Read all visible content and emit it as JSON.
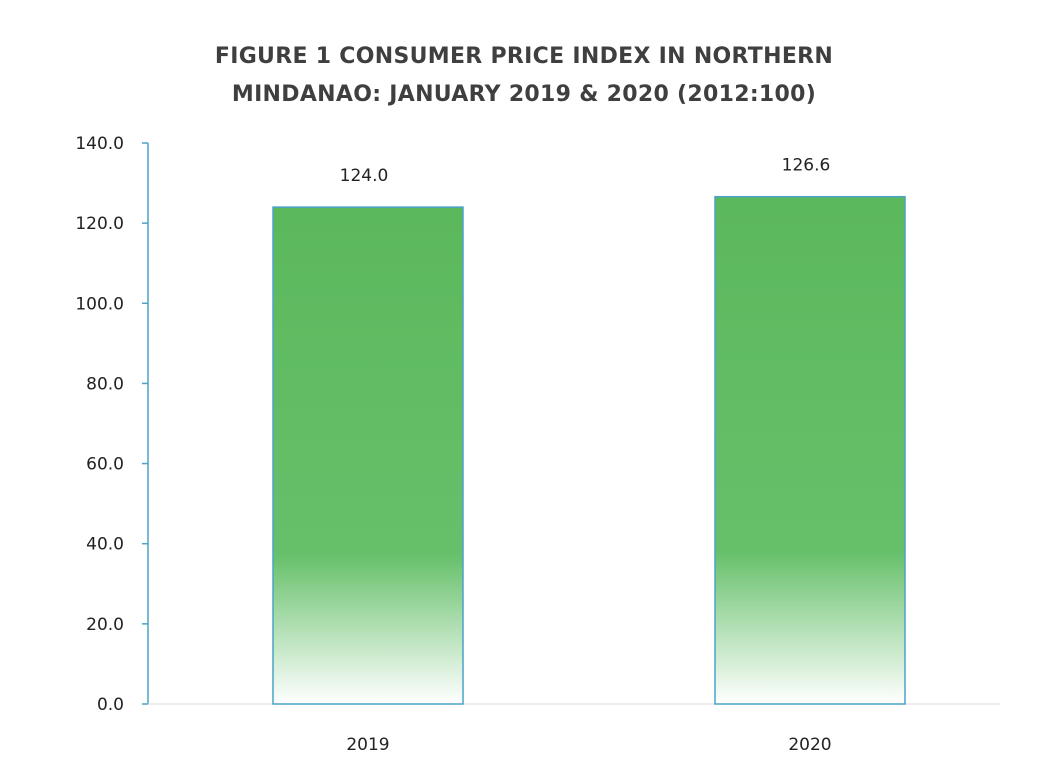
{
  "chart_data": {
    "type": "bar",
    "title_lines": [
      "FIGURE 1 CONSUMER PRICE INDEX IN NORTHERN",
      "MINDANAO: JANUARY 2019 & 2020 (2012:100)"
    ],
    "categories": [
      "2019",
      "2020"
    ],
    "values": [
      124.0,
      126.6
    ],
    "data_labels": [
      "124.0",
      "126.6"
    ],
    "ylim": [
      0,
      140
    ],
    "yticks": [
      0,
      20,
      40,
      60,
      80,
      100,
      120,
      140
    ],
    "ytick_labels": [
      "0.0",
      "20.0",
      "40.0",
      "60.0",
      "80.0",
      "100.0",
      "120.0",
      "140.0"
    ],
    "grid": false,
    "legend": "none",
    "colors": {
      "bar_fill": "#5cb85c",
      "bar_fill_light": "#ffffff",
      "bar_outline": "#4aa3c8",
      "axis": "#4aa3c8",
      "text": "#222222"
    }
  }
}
